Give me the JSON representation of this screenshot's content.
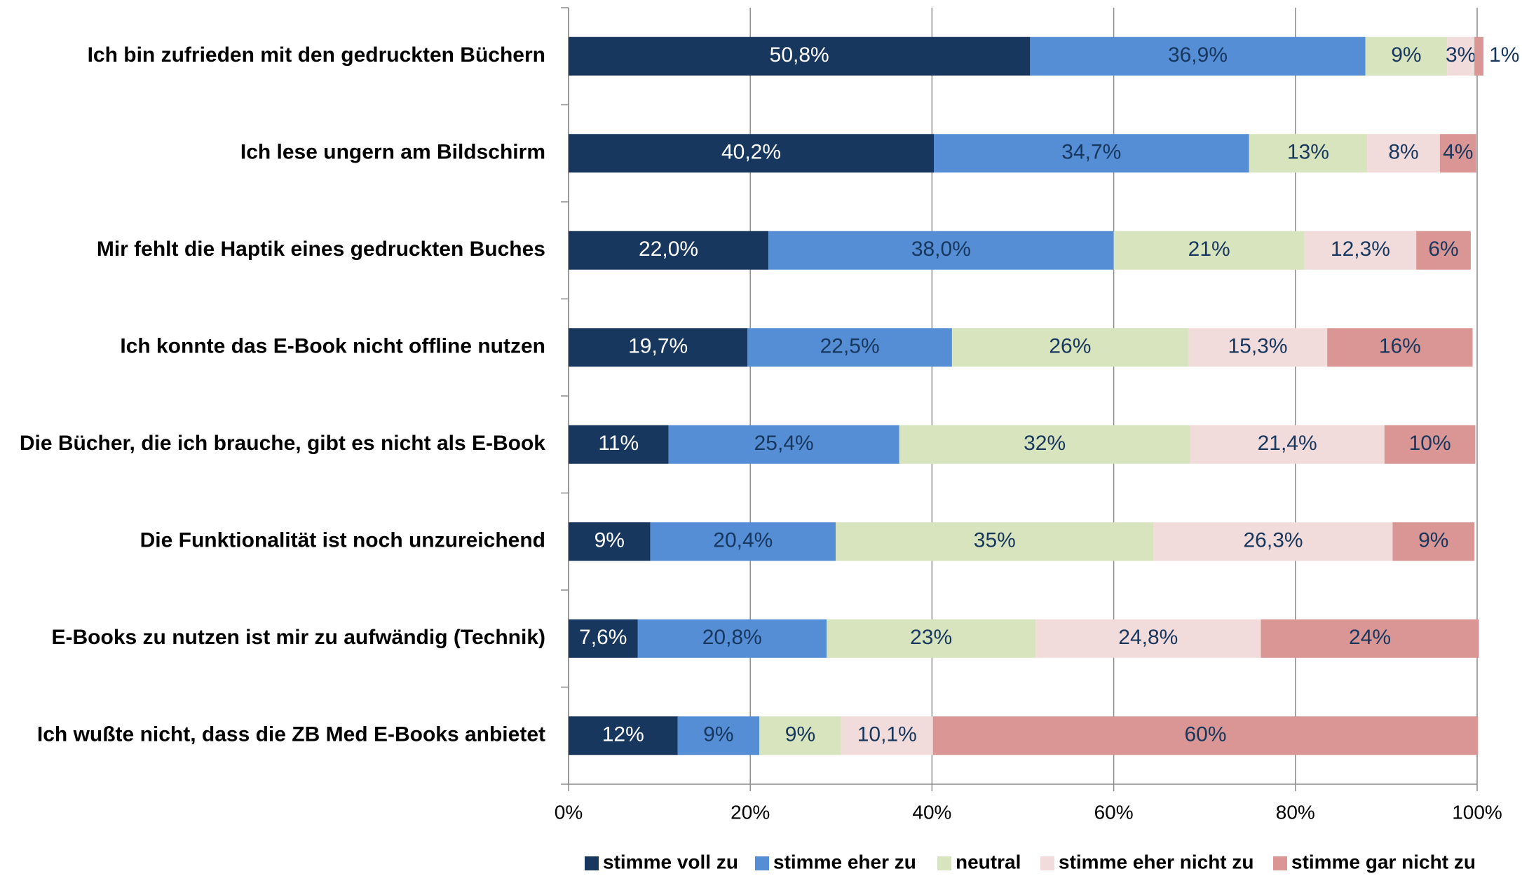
{
  "chart_data": {
    "type": "stacked_barh",
    "categories": [
      "Ich bin zufrieden mit den gedruckten Büchern",
      "Ich lese ungern am Bildschirm",
      "Mir fehlt die Haptik eines gedruckten Buches",
      "Ich konnte das E-Book nicht offline nutzen",
      "Die Bücher, die ich brauche, gibt es nicht als E-Book",
      "Die Funktionalität ist noch unzureichend",
      "E-Books zu nutzen ist mir zu aufwändig (Technik)",
      "Ich wußte nicht, dass die ZB Med E-Books anbietet"
    ],
    "series": [
      {
        "name": "stimme voll zu",
        "color": "#17375e",
        "values": [
          50.8,
          40.2,
          22.0,
          19.7,
          11,
          9,
          7.6,
          12
        ],
        "value_labels": [
          "50,8%",
          "40,2%",
          "22,0%",
          "19,7%",
          "11%",
          "9%",
          "7,6%",
          "12%"
        ]
      },
      {
        "name": "stimme eher zu",
        "color": "#558ed5",
        "values": [
          36.9,
          34.7,
          38.0,
          22.5,
          25.4,
          20.4,
          20.8,
          9
        ],
        "value_labels": [
          "36,9%",
          "34,7%",
          "38,0%",
          "22,5%",
          "25,4%",
          "20,4%",
          "20,8%",
          "9%"
        ]
      },
      {
        "name": "neutral",
        "color": "#d7e4bd",
        "values": [
          9,
          13,
          21,
          26,
          32,
          35,
          23,
          9
        ],
        "value_labels": [
          "9%",
          "13%",
          "21%",
          "26%",
          "32%",
          "35%",
          "23%",
          "9%"
        ]
      },
      {
        "name": "stimme eher nicht zu",
        "color": "#f2dcdb",
        "values": [
          3,
          8,
          12.3,
          15.3,
          21.4,
          26.3,
          24.8,
          10.1
        ],
        "value_labels": [
          "3%",
          "8%",
          "12,3%",
          "15,3%",
          "21,4%",
          "26,3%",
          "24,8%",
          "10,1%"
        ]
      },
      {
        "name": "stimme gar nicht zu",
        "color": "#d99694",
        "values": [
          1,
          4,
          6,
          16,
          10,
          9,
          24,
          60
        ],
        "value_labels": [
          "1%",
          "4%",
          "6%",
          "16%",
          "10%",
          "9%",
          "24%",
          "60%"
        ]
      }
    ],
    "xlim": [
      0,
      100
    ],
    "xticks": [
      {
        "value": 0,
        "label": "0%"
      },
      {
        "value": 20,
        "label": "20%"
      },
      {
        "value": 40,
        "label": "40%"
      },
      {
        "value": 60,
        "label": "60%"
      },
      {
        "value": 80,
        "label": "80%"
      },
      {
        "value": 100,
        "label": "100%"
      }
    ],
    "grid": true,
    "legend": "bottom"
  }
}
